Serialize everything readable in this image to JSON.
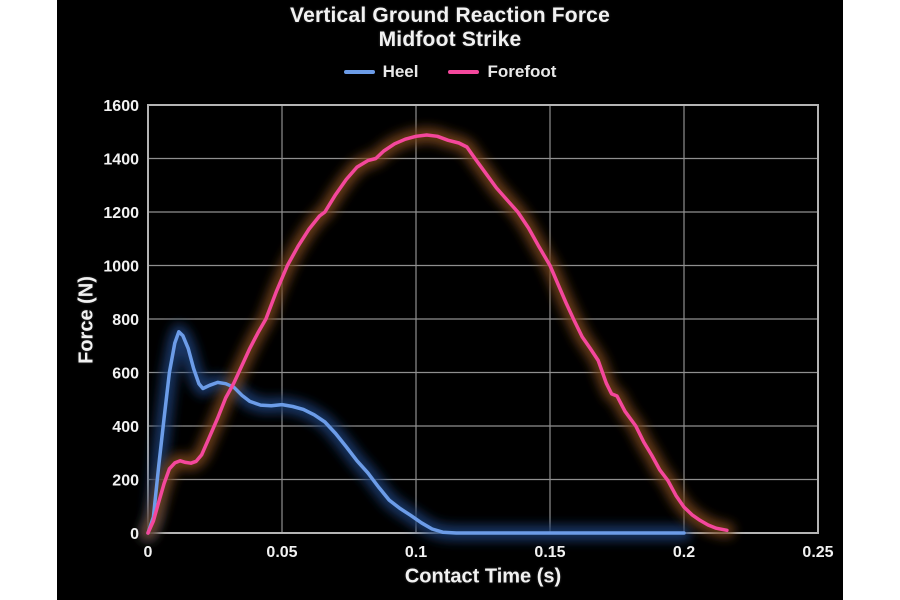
{
  "page": {
    "background_color": "#ffffff",
    "stage_background_color": "#000000"
  },
  "chart_data": {
    "type": "line",
    "title": "Vertical Ground Reaction Force",
    "subtitle": "Midfoot Strike",
    "xlabel": "Contact Time (s)",
    "ylabel": "Force (N)",
    "xlim": [
      0,
      0.25
    ],
    "ylim": [
      0,
      1600
    ],
    "x_ticks": [
      0,
      0.05,
      0.1,
      0.15,
      0.2,
      0.25
    ],
    "x_tick_labels": [
      "0",
      "0.05",
      "0.1",
      "0.15",
      "0.2",
      "0.25"
    ],
    "y_ticks": [
      0,
      200,
      400,
      600,
      800,
      1000,
      1200,
      1400,
      1600
    ],
    "grid": true,
    "legend_position": "top",
    "grid_color": "#8f8f8f",
    "frame_color": "#b4b4b4",
    "text_color": "#f2f2f2",
    "series": [
      {
        "name": "Heel",
        "color": "#6c9ce8",
        "glow_color": "#1d3c72",
        "points": [
          [
            0,
            0
          ],
          [
            0.002,
            60
          ],
          [
            0.004,
            250
          ],
          [
            0.006,
            430
          ],
          [
            0.008,
            600
          ],
          [
            0.01,
            710
          ],
          [
            0.0115,
            752
          ],
          [
            0.013,
            738
          ],
          [
            0.015,
            690
          ],
          [
            0.017,
            615
          ],
          [
            0.019,
            558
          ],
          [
            0.0205,
            540
          ],
          [
            0.023,
            552
          ],
          [
            0.026,
            563
          ],
          [
            0.029,
            558
          ],
          [
            0.032,
            545
          ],
          [
            0.035,
            515
          ],
          [
            0.038,
            492
          ],
          [
            0.042,
            478
          ],
          [
            0.046,
            476
          ],
          [
            0.05,
            480
          ],
          [
            0.054,
            473
          ],
          [
            0.058,
            462
          ],
          [
            0.062,
            442
          ],
          [
            0.066,
            415
          ],
          [
            0.07,
            372
          ],
          [
            0.074,
            322
          ],
          [
            0.078,
            270
          ],
          [
            0.082,
            225
          ],
          [
            0.086,
            172
          ],
          [
            0.09,
            123
          ],
          [
            0.094,
            92
          ],
          [
            0.098,
            66
          ],
          [
            0.102,
            38
          ],
          [
            0.106,
            15
          ],
          [
            0.11,
            3
          ],
          [
            0.115,
            0
          ],
          [
            0.13,
            0
          ],
          [
            0.15,
            0
          ],
          [
            0.17,
            0
          ],
          [
            0.19,
            0
          ],
          [
            0.2,
            0
          ]
        ]
      },
      {
        "name": "Forefoot",
        "color": "#f4479c",
        "glow_color": "#76451d",
        "points": [
          [
            0,
            0
          ],
          [
            0.002,
            45
          ],
          [
            0.004,
            115
          ],
          [
            0.006,
            185
          ],
          [
            0.008,
            240
          ],
          [
            0.01,
            262
          ],
          [
            0.012,
            270
          ],
          [
            0.014,
            264
          ],
          [
            0.016,
            261
          ],
          [
            0.018,
            268
          ],
          [
            0.02,
            292
          ],
          [
            0.023,
            360
          ],
          [
            0.026,
            430
          ],
          [
            0.029,
            505
          ],
          [
            0.032,
            560
          ],
          [
            0.035,
            625
          ],
          [
            0.038,
            690
          ],
          [
            0.041,
            748
          ],
          [
            0.044,
            800
          ],
          [
            0.048,
            905
          ],
          [
            0.052,
            1000
          ],
          [
            0.056,
            1072
          ],
          [
            0.06,
            1135
          ],
          [
            0.064,
            1185
          ],
          [
            0.066,
            1200
          ],
          [
            0.07,
            1265
          ],
          [
            0.074,
            1322
          ],
          [
            0.078,
            1368
          ],
          [
            0.082,
            1392
          ],
          [
            0.085,
            1400
          ],
          [
            0.088,
            1428
          ],
          [
            0.092,
            1455
          ],
          [
            0.096,
            1472
          ],
          [
            0.1,
            1483
          ],
          [
            0.104,
            1488
          ],
          [
            0.108,
            1483
          ],
          [
            0.112,
            1468
          ],
          [
            0.116,
            1458
          ],
          [
            0.119,
            1443
          ],
          [
            0.122,
            1400
          ],
          [
            0.126,
            1345
          ],
          [
            0.13,
            1290
          ],
          [
            0.134,
            1245
          ],
          [
            0.138,
            1200
          ],
          [
            0.142,
            1140
          ],
          [
            0.146,
            1068
          ],
          [
            0.15,
            1000
          ],
          [
            0.153,
            930
          ],
          [
            0.156,
            860
          ],
          [
            0.159,
            795
          ],
          [
            0.162,
            733
          ],
          [
            0.165,
            690
          ],
          [
            0.168,
            645
          ],
          [
            0.171,
            560
          ],
          [
            0.173,
            520
          ],
          [
            0.175,
            512
          ],
          [
            0.178,
            455
          ],
          [
            0.182,
            400
          ],
          [
            0.185,
            340
          ],
          [
            0.188,
            290
          ],
          [
            0.191,
            235
          ],
          [
            0.194,
            196
          ],
          [
            0.197,
            140
          ],
          [
            0.2,
            97
          ],
          [
            0.203,
            68
          ],
          [
            0.206,
            47
          ],
          [
            0.209,
            30
          ],
          [
            0.212,
            18
          ],
          [
            0.216,
            10
          ]
        ]
      }
    ]
  }
}
